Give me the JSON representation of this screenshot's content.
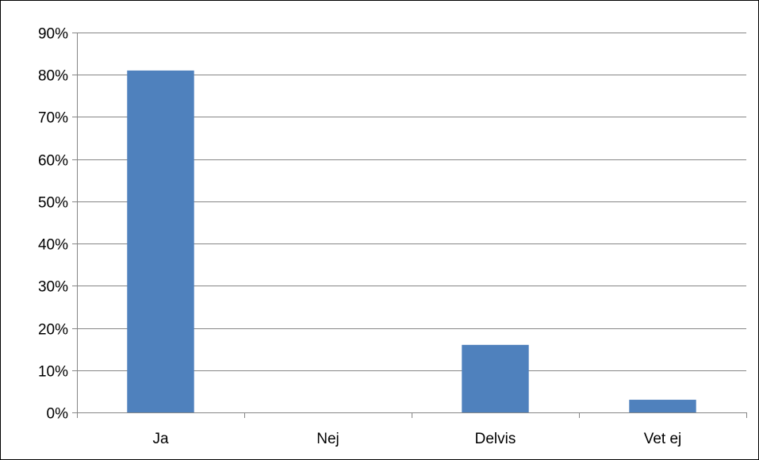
{
  "chart_data": {
    "type": "bar",
    "title": "",
    "xlabel": "",
    "ylabel": "",
    "categories": [
      "Ja",
      "Nej",
      "Delvis",
      "Vet ej"
    ],
    "values": [
      81,
      0,
      16,
      3
    ],
    "value_unit": "%",
    "ylim": [
      0,
      90
    ],
    "y_ticks": [
      "0%",
      "10%",
      "20%",
      "30%",
      "40%",
      "50%",
      "60%",
      "70%",
      "80%",
      "90%"
    ],
    "grid": "horizontal",
    "legend": "none",
    "colors": {
      "bar": "#4f81bd",
      "gridline": "#868686",
      "axis": "#868686",
      "text": "#000000",
      "frame": "#000000"
    }
  }
}
